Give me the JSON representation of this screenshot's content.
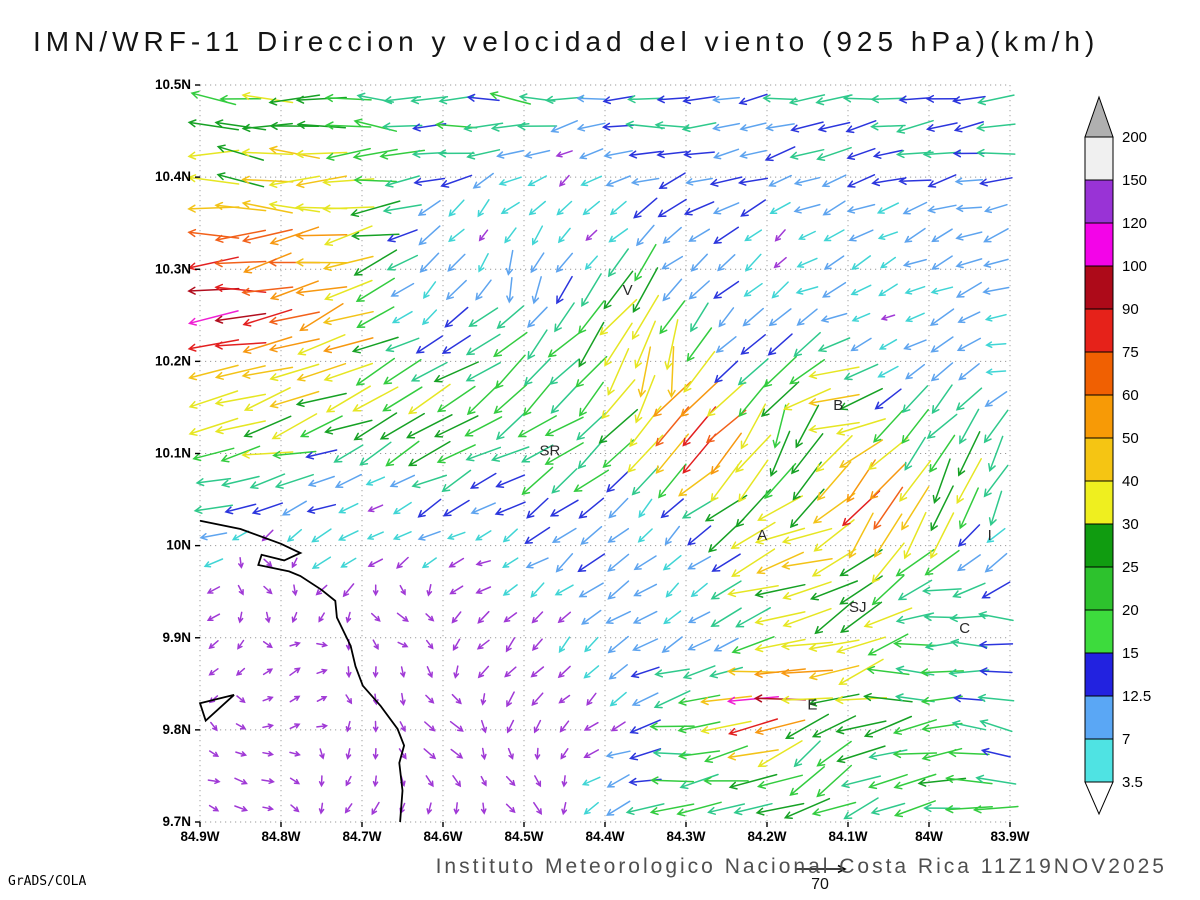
{
  "footer": "Instituto Meteorologico Nacional Costa Rica  11Z19NOV2025",
  "credit": "GrADS/COLA",
  "chart_data": {
    "type": "vector_field",
    "title": "IMN/WRF-11 Direccion y velocidad del viento (925 hPa)(km/h)",
    "units": "km/h",
    "level": "925 hPa",
    "x_axis": {
      "ticks": [
        "84.9W",
        "84.8W",
        "84.7W",
        "84.6W",
        "84.5W",
        "84.4W",
        "84.3W",
        "84.2W",
        "84.1W",
        "84W",
        "83.9W"
      ],
      "range": [
        84.9,
        83.9
      ]
    },
    "y_axis": {
      "ticks": [
        "10.5N",
        "10.4N",
        "10.3N",
        "10.2N",
        "10.1N",
        "10N",
        "9.9N",
        "9.8N",
        "9.7N"
      ],
      "range": [
        9.7,
        10.5
      ]
    },
    "grid": {
      "lon_min": 83.9,
      "lon_max": 84.9,
      "lat_min": 9.7,
      "lat_max": 10.5,
      "cols": 30,
      "rows": 27,
      "lon_start": 84.883,
      "lon_end": 83.917,
      "lat_start": 9.715,
      "lat_end": 10.485
    },
    "legend": {
      "labels": [
        "3.5",
        "7",
        "12.5",
        "15",
        "20",
        "25",
        "30",
        "40",
        "50",
        "60",
        "75",
        "90",
        "100",
        "120",
        "150",
        "200"
      ],
      "colors": [
        "#4fe3e3",
        "#5aa7f5",
        "#2222e0",
        "#3ddb3d",
        "#2dc22d",
        "#109c10",
        "#efef1f",
        "#f5c513",
        "#f79a06",
        "#f06002",
        "#e6221a",
        "#ad0a19",
        "#f304e8",
        "#9933d6",
        "#f0f0f0"
      ],
      "over_color": "#b0b0b0",
      "under_color": "#ffffff"
    },
    "stations": [
      {
        "label": "V",
        "lon_w": 84.372,
        "lat": 10.272
      },
      {
        "label": "B",
        "lon_w": 84.112,
        "lat": 10.147
      },
      {
        "label": "SR",
        "lon_w": 84.468,
        "lat": 10.098
      },
      {
        "label": "A",
        "lon_w": 84.206,
        "lat": 10.006
      },
      {
        "label": "SJ",
        "lon_w": 84.088,
        "lat": 9.928
      },
      {
        "label": "C",
        "lon_w": 83.956,
        "lat": 9.905
      },
      {
        "label": "E",
        "lon_w": 84.144,
        "lat": 9.822
      },
      {
        "label": "I",
        "lon_w": 83.925,
        "lat": 10.006
      }
    ],
    "reference_vector": {
      "label": "70",
      "value": 70
    },
    "coastline": [
      [
        [
          84.9,
          10.027
        ],
        [
          84.85,
          10.018
        ],
        [
          84.8,
          10.002
        ],
        [
          84.776,
          9.992
        ],
        [
          84.796,
          9.984
        ],
        [
          84.824,
          9.99
        ],
        [
          84.828,
          9.979
        ],
        [
          84.79,
          9.972
        ],
        [
          84.776,
          9.967
        ],
        [
          84.75,
          9.952
        ],
        [
          84.733,
          9.94
        ],
        [
          84.731,
          9.922
        ],
        [
          84.714,
          9.891
        ],
        [
          84.708,
          9.869
        ],
        [
          84.699,
          9.848
        ],
        [
          84.677,
          9.826
        ],
        [
          84.656,
          9.801
        ],
        [
          84.648,
          9.783
        ],
        [
          84.654,
          9.764
        ],
        [
          84.65,
          9.734
        ],
        [
          84.653,
          9.7
        ]
      ],
      [
        [
          84.9,
          9.829
        ],
        [
          84.858,
          9.838
        ],
        [
          84.893,
          9.81
        ]
      ]
    ],
    "wind_samples": [
      [
        84.88,
        10.47,
        -24,
        2
      ],
      [
        84.7,
        10.48,
        -22,
        1
      ],
      [
        84.6,
        10.48,
        -19,
        0
      ],
      [
        84.5,
        10.48,
        -20,
        1
      ],
      [
        84.35,
        10.47,
        -17,
        -1
      ],
      [
        84.15,
        10.47,
        -16,
        -1
      ],
      [
        84.05,
        10.46,
        -17,
        -2
      ],
      [
        83.92,
        10.44,
        -17,
        -2
      ],
      [
        84.4,
        10.44,
        -15,
        -2
      ],
      [
        84.25,
        10.42,
        -13,
        -4
      ],
      [
        84.9,
        10.42,
        -26,
        2
      ],
      [
        84.86,
        10.4,
        -30,
        3
      ],
      [
        84.82,
        10.37,
        -42,
        4
      ],
      [
        84.87,
        10.33,
        -82,
        -6
      ],
      [
        84.8,
        10.3,
        -55,
        -12
      ],
      [
        84.85,
        10.26,
        -105,
        -10
      ],
      [
        84.55,
        10.33,
        -2,
        -4
      ],
      [
        84.42,
        10.33,
        -3,
        -3
      ],
      [
        84.45,
        10.4,
        -3,
        -4
      ],
      [
        84.52,
        10.29,
        -2,
        -13
      ],
      [
        84.62,
        10.26,
        -4,
        -5
      ],
      [
        84.3,
        10.3,
        -8,
        -5
      ],
      [
        84.15,
        10.28,
        -9,
        -4
      ],
      [
        84.05,
        10.3,
        -7,
        -3
      ],
      [
        83.91,
        10.35,
        -10,
        -3
      ],
      [
        83.91,
        10.2,
        -8,
        -2
      ],
      [
        84.18,
        10.31,
        -3,
        -3
      ],
      [
        84.06,
        10.24,
        -4,
        -2
      ],
      [
        84.25,
        10.22,
        -7,
        -6
      ],
      [
        84.75,
        10.21,
        -42,
        -22
      ],
      [
        84.62,
        10.15,
        -28,
        -16
      ],
      [
        84.78,
        10.15,
        -38,
        -12
      ],
      [
        84.88,
        10.14,
        -35,
        -8
      ],
      [
        84.55,
        10.22,
        -18,
        -14
      ],
      [
        84.37,
        10.26,
        -20,
        -30
      ],
      [
        84.33,
        10.2,
        -6,
        -40
      ],
      [
        84.29,
        10.13,
        -55,
        -55
      ],
      [
        84.45,
        10.12,
        -18,
        -14
      ],
      [
        84.55,
        10.08,
        -14,
        -8
      ],
      [
        84.11,
        10.15,
        -48,
        -8
      ],
      [
        84.17,
        10.12,
        -8,
        -25
      ],
      [
        84.05,
        10.18,
        -8,
        -4
      ],
      [
        84.07,
        10.05,
        -45,
        -62
      ],
      [
        84.0,
        10.02,
        -18,
        -35
      ],
      [
        83.95,
        10.05,
        -10,
        -28
      ],
      [
        84.02,
        10.1,
        -12,
        -18
      ],
      [
        84.17,
        9.97,
        -38,
        -12
      ],
      [
        84.08,
        9.94,
        -20,
        -18
      ],
      [
        84.0,
        9.93,
        -17,
        0
      ],
      [
        83.94,
        9.9,
        -16,
        3
      ],
      [
        84.12,
        9.86,
        -45,
        -10
      ],
      [
        84.03,
        9.86,
        -22,
        4
      ],
      [
        83.93,
        10.0,
        -8,
        -3
      ],
      [
        84.88,
        10.09,
        -17,
        -5
      ],
      [
        84.75,
        10.08,
        -14,
        -4
      ],
      [
        84.82,
        9.97,
        3,
        -2
      ],
      [
        84.65,
        9.92,
        4,
        -2
      ],
      [
        84.78,
        9.85,
        3,
        2
      ],
      [
        84.6,
        9.8,
        4,
        -3
      ],
      [
        84.85,
        9.74,
        4,
        -1
      ],
      [
        84.5,
        9.73,
        3,
        -3
      ],
      [
        84.42,
        9.82,
        -3,
        -3
      ],
      [
        84.48,
        9.9,
        -3,
        -4
      ],
      [
        84.55,
        9.98,
        -4,
        -2
      ],
      [
        84.68,
        10.04,
        -4,
        -3
      ],
      [
        84.3,
        9.95,
        -4,
        -4
      ],
      [
        84.35,
        10.03,
        -5,
        -5
      ],
      [
        84.25,
        9.88,
        -6,
        -5
      ],
      [
        84.28,
        9.77,
        -18,
        -2
      ],
      [
        84.23,
        9.72,
        -20,
        -2
      ],
      [
        84.2,
        9.825,
        -108,
        -8
      ],
      [
        84.12,
        9.82,
        -30,
        -8
      ],
      [
        84.15,
        9.77,
        -12,
        -18
      ],
      [
        83.96,
        9.74,
        -24,
        -2
      ],
      [
        84.03,
        9.72,
        -18,
        -6
      ],
      [
        83.92,
        9.8,
        -14,
        4
      ],
      [
        84.08,
        9.9,
        -28,
        -16
      ]
    ],
    "arrow_palette": [
      {
        "max": 6,
        "color": "#a039d6"
      },
      {
        "max": 9.5,
        "color": "#40d5d5"
      },
      {
        "max": 13,
        "color": "#5ea4ef"
      },
      {
        "max": 16,
        "color": "#2b35dd"
      },
      {
        "max": 21,
        "color": "#2fc98c"
      },
      {
        "max": 26,
        "color": "#33cc3f"
      },
      {
        "max": 31,
        "color": "#16a124"
      },
      {
        "max": 41,
        "color": "#e6e623"
      },
      {
        "max": 51,
        "color": "#f3c318"
      },
      {
        "max": 61,
        "color": "#f79810"
      },
      {
        "max": 76,
        "color": "#f2611a"
      },
      {
        "max": 91,
        "color": "#e32020"
      },
      {
        "max": 101,
        "color": "#b10e1e"
      },
      {
        "max": 121,
        "color": "#ef1fd3"
      },
      {
        "max": 151,
        "color": "#8f2ad9"
      },
      {
        "max": 999,
        "color": "#e0e0e0"
      }
    ],
    "jitter": {
      "angle": 0.45,
      "speed": 0.4
    }
  }
}
